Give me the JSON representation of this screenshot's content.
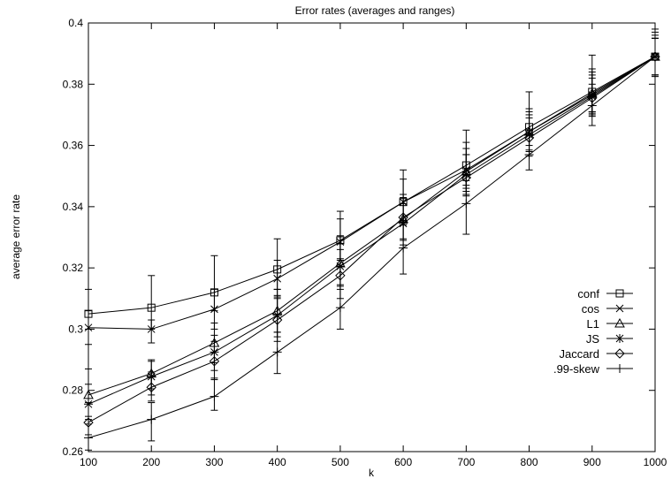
{
  "chart_data": {
    "type": "line",
    "title": "Error rates (averages and ranges)",
    "xlabel": "k",
    "ylabel": "average error rate",
    "xlim": [
      100,
      1000
    ],
    "ylim": [
      0.26,
      0.4
    ],
    "x": [
      100,
      200,
      300,
      400,
      500,
      600,
      700,
      800,
      900,
      1000
    ],
    "xticks": [
      "100",
      "200",
      "300",
      "400",
      "500",
      "600",
      "700",
      "800",
      "900",
      "1000"
    ],
    "yticks": [
      "0.26",
      "0.28",
      "0.3",
      "0.32",
      "0.34",
      "0.36",
      "0.38",
      "0.4"
    ],
    "grid": false,
    "legend_position": "right",
    "series": [
      {
        "name": "conf",
        "marker": "square",
        "values": [
          0.305,
          0.307,
          0.312,
          0.3195,
          0.329,
          0.3415,
          0.3535,
          0.366,
          0.3775,
          0.389
        ],
        "low": [
          0.3,
          0.3,
          0.306,
          0.313,
          0.323,
          0.335,
          0.347,
          0.36,
          0.371,
          0.383
        ],
        "high": [
          0.313,
          0.3175,
          0.324,
          0.3295,
          0.3385,
          0.352,
          0.365,
          0.3775,
          0.3895,
          0.398
        ]
      },
      {
        "name": "cos",
        "marker": "x",
        "values": [
          0.3005,
          0.3,
          0.3065,
          0.3165,
          0.3285,
          0.3415,
          0.352,
          0.3645,
          0.3765,
          0.389
        ],
        "low": [
          0.295,
          0.2955,
          0.3,
          0.3105,
          0.3225,
          0.3355,
          0.346,
          0.3585,
          0.3705,
          0.383
        ],
        "high": [
          0.306,
          0.303,
          0.313,
          0.3225,
          0.336,
          0.349,
          0.361,
          0.372,
          0.385,
          0.397
        ]
      },
      {
        "name": "L1",
        "marker": "triangle",
        "values": [
          0.2785,
          0.2855,
          0.2955,
          0.306,
          0.3215,
          0.336,
          0.3515,
          0.3645,
          0.377,
          0.389
        ],
        "low": [
          0.2715,
          0.2805,
          0.289,
          0.299,
          0.314,
          0.329,
          0.345,
          0.358,
          0.371,
          0.383
        ],
        "high": [
          0.287,
          0.29,
          0.302,
          0.313,
          0.3305,
          0.343,
          0.359,
          0.371,
          0.384,
          0.395
        ]
      },
      {
        "name": "JS",
        "marker": "asterisk",
        "values": [
          0.2755,
          0.2845,
          0.2925,
          0.3045,
          0.3205,
          0.3345,
          0.3505,
          0.3635,
          0.376,
          0.389
        ],
        "low": [
          0.2705,
          0.2785,
          0.2865,
          0.2975,
          0.313,
          0.3275,
          0.344,
          0.357,
          0.37,
          0.383
        ],
        "high": [
          0.282,
          0.2895,
          0.298,
          0.311,
          0.328,
          0.341,
          0.357,
          0.37,
          0.383,
          0.395
        ]
      },
      {
        "name": "Jaccard",
        "marker": "diamond",
        "values": [
          0.2695,
          0.281,
          0.2895,
          0.303,
          0.3175,
          0.3365,
          0.3495,
          0.3625,
          0.3755,
          0.389
        ],
        "low": [
          0.2655,
          0.2765,
          0.2835,
          0.296,
          0.31,
          0.3295,
          0.3435,
          0.3565,
          0.3695,
          0.383
        ],
        "high": [
          0.276,
          0.286,
          0.296,
          0.31,
          0.326,
          0.344,
          0.357,
          0.369,
          0.382,
          0.395
        ]
      },
      {
        "name": ".99-skew",
        "marker": "plus",
        "values": [
          0.2645,
          0.2705,
          0.278,
          0.2925,
          0.307,
          0.3265,
          0.341,
          0.357,
          0.373,
          0.389
        ],
        "low": [
          0.2605,
          0.2635,
          0.2735,
          0.2855,
          0.3,
          0.318,
          0.331,
          0.352,
          0.3665,
          0.3825
        ],
        "high": [
          0.269,
          0.276,
          0.284,
          0.299,
          0.3145,
          0.334,
          0.3485,
          0.364,
          0.38,
          0.396
        ]
      }
    ]
  }
}
